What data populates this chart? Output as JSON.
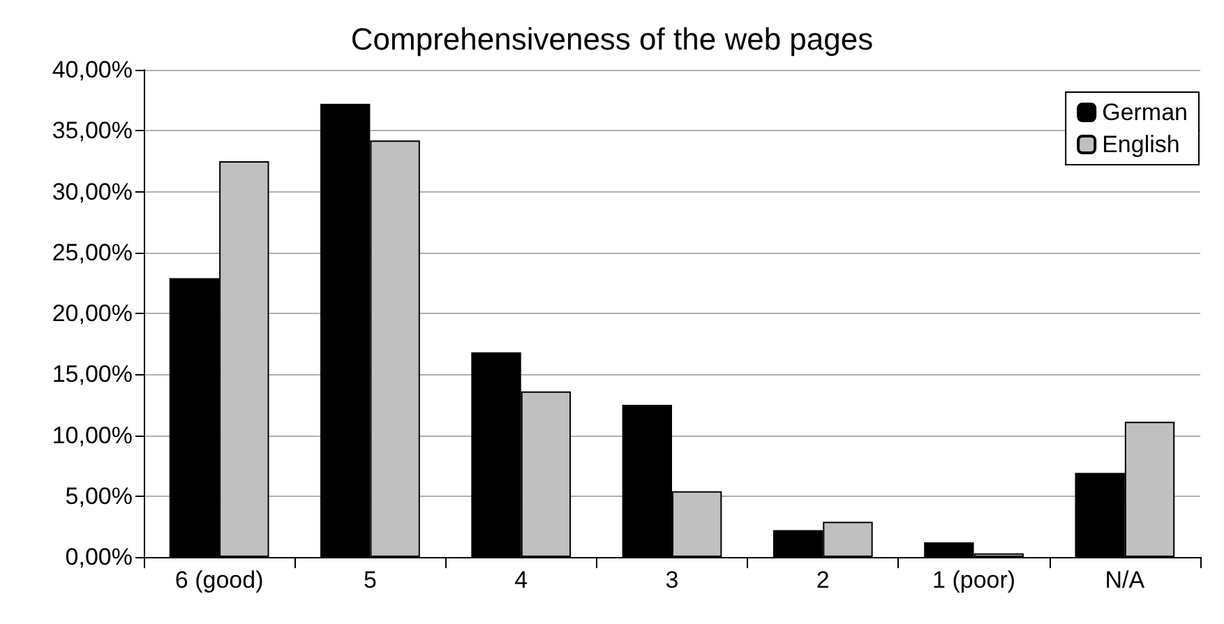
{
  "chart_data": {
    "type": "bar",
    "title": "Comprehensiveness of the web pages",
    "categories": [
      "6 (good)",
      "5",
      "4",
      "3",
      "2",
      "1 (poor)",
      "N/A"
    ],
    "series": [
      {
        "name": "German",
        "color": "#000000",
        "values": [
          22.9,
          37.2,
          16.8,
          12.5,
          2.2,
          1.2,
          6.9
        ]
      },
      {
        "name": "English",
        "color": "#c0c0c0",
        "values": [
          32.5,
          34.2,
          13.6,
          5.4,
          2.9,
          0.3,
          11.1
        ]
      }
    ],
    "ylim": [
      0,
      40
    ],
    "yticks": [
      {
        "value": 0,
        "label": "0,00%"
      },
      {
        "value": 5,
        "label": "5,00%"
      },
      {
        "value": 10,
        "label": "10,00%"
      },
      {
        "value": 15,
        "label": "15,00%"
      },
      {
        "value": 20,
        "label": "20,00%"
      },
      {
        "value": 25,
        "label": "25,00%"
      },
      {
        "value": 30,
        "label": "30,00%"
      },
      {
        "value": 35,
        "label": "35,00%"
      },
      {
        "value": 40,
        "label": "40,00%"
      }
    ],
    "grid": "y",
    "legend": "top right"
  }
}
